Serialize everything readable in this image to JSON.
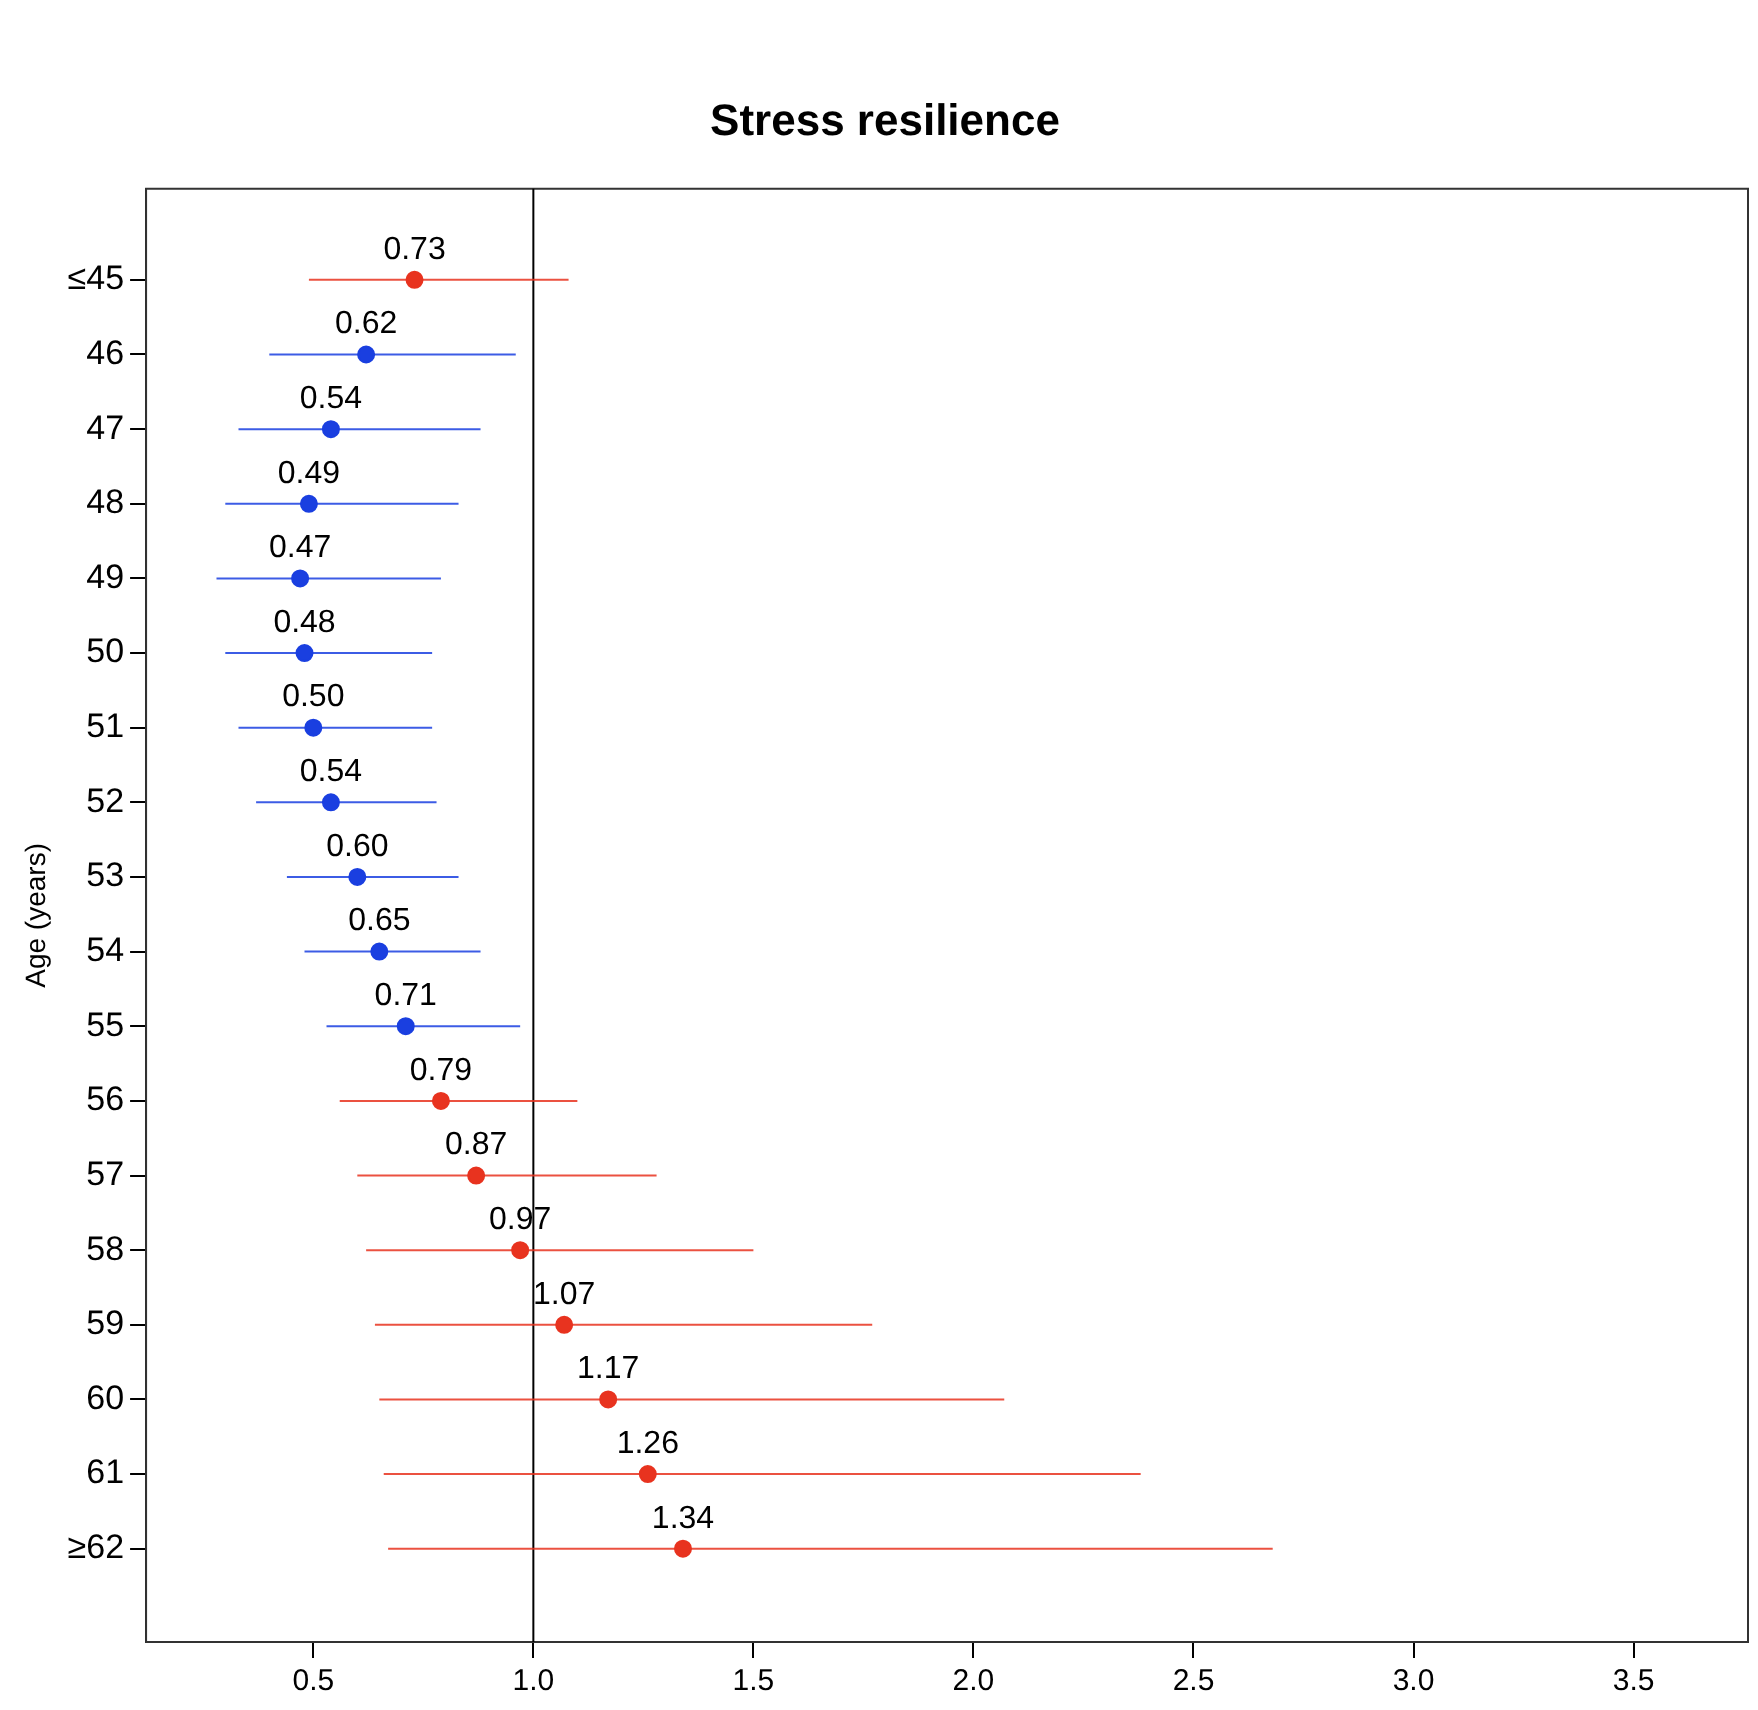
{
  "chart_data": {
    "type": "scatter",
    "orientation": "horizontal",
    "title": "Stress resilience",
    "ylabel": "Age (years)",
    "categories": [
      "≤45",
      "46",
      "47",
      "48",
      "49",
      "50",
      "51",
      "52",
      "53",
      "54",
      "55",
      "56",
      "57",
      "58",
      "59",
      "60",
      "61",
      "≥62"
    ],
    "values": [
      0.73,
      0.62,
      0.54,
      0.49,
      0.47,
      0.48,
      0.5,
      0.54,
      0.6,
      0.65,
      0.71,
      0.79,
      0.87,
      0.97,
      1.07,
      1.17,
      1.26,
      1.34
    ],
    "errors": [
      [
        0.49,
        1.08
      ],
      [
        0.4,
        0.96
      ],
      [
        0.33,
        0.88
      ],
      [
        0.3,
        0.83
      ],
      [
        0.28,
        0.79
      ],
      [
        0.3,
        0.77
      ],
      [
        0.33,
        0.77
      ],
      [
        0.37,
        0.78
      ],
      [
        0.44,
        0.83
      ],
      [
        0.48,
        0.88
      ],
      [
        0.53,
        0.97
      ],
      [
        0.56,
        1.1
      ],
      [
        0.6,
        1.28
      ],
      [
        0.62,
        1.5
      ],
      [
        0.64,
        1.77
      ],
      [
        0.65,
        2.07
      ],
      [
        0.66,
        2.38
      ],
      [
        0.67,
        2.68
      ]
    ],
    "colors": [
      "#e8331f",
      "#1a3fe0",
      "#1a3fe0",
      "#1a3fe0",
      "#1a3fe0",
      "#1a3fe0",
      "#1a3fe0",
      "#1a3fe0",
      "#1a3fe0",
      "#1a3fe0",
      "#1a3fe0",
      "#e8331f",
      "#e8331f",
      "#e8331f",
      "#e8331f",
      "#e8331f",
      "#e8331f",
      "#e8331f"
    ],
    "value_labels": [
      "0.73",
      "0.62",
      "0.54",
      "0.49",
      "0.47",
      "0.48",
      "0.50",
      "0.54",
      "0.60",
      "0.65",
      "0.71",
      "0.79",
      "0.87",
      "0.97",
      "1.07",
      "1.17",
      "1.26",
      "1.34"
    ],
    "xlim": [
      0.12,
      3.76
    ],
    "xticks": [
      0.5,
      {
        "value": 1,
        "label": "1.0"
      },
      1.5,
      {
        "value": 2,
        "label": "2.0"
      },
      2.5,
      {
        "value": 3,
        "label": "3.0"
      },
      3.5
    ],
    "ref_lines": [
      {
        "axis": "x",
        "value": 1.0,
        "color": "#000000"
      }
    ],
    "marker": "circle",
    "grid": false,
    "legend": false
  }
}
